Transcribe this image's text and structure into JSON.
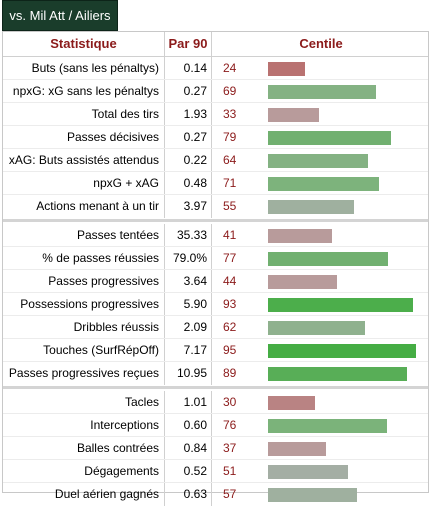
{
  "tab_label": "vs. Mil Att / Ailiers",
  "headers": {
    "stat": "Statistique",
    "per90": "Par 90",
    "percentile": "Centile"
  },
  "colors": {
    "header_text": "#8b1a1a",
    "tab_bg": "#1a3d2b",
    "bar_red": "#b97271",
    "bar_pink": "#b89b9b",
    "bar_grey": "#9fb09f",
    "bar_lightgreen": "#84b283",
    "bar_green": "#4cae4b"
  },
  "groups": [
    {
      "rows": [
        {
          "label": "Buts (sans les pénaltys)",
          "per90": "0.14",
          "percentile": "24",
          "color": "#b97271"
        },
        {
          "label": "npxG: xG sans les pénaltys",
          "per90": "0.27",
          "percentile": "69",
          "color": "#84b283"
        },
        {
          "label": "Total des tirs",
          "per90": "1.93",
          "percentile": "33",
          "color": "#b89b9b"
        },
        {
          "label": "Passes décisives",
          "per90": "0.27",
          "percentile": "79",
          "color": "#71b070"
        },
        {
          "label": "xAG: Buts assistés attendus",
          "per90": "0.22",
          "percentile": "64",
          "color": "#84b283"
        },
        {
          "label": "npxG + xAG",
          "per90": "0.48",
          "percentile": "71",
          "color": "#7db37c"
        },
        {
          "label": "Actions menant à un tir",
          "per90": "3.97",
          "percentile": "55",
          "color": "#9fb09f"
        }
      ]
    },
    {
      "rows": [
        {
          "label": "Passes tentées",
          "per90": "35.33",
          "percentile": "41",
          "color": "#b89b9b"
        },
        {
          "label": "% de passes réussies",
          "per90": "79.0%",
          "percentile": "77",
          "color": "#71b070"
        },
        {
          "label": "Passes progressives",
          "per90": "3.64",
          "percentile": "44",
          "color": "#b89b9b"
        },
        {
          "label": "Possessions progressives",
          "per90": "5.90",
          "percentile": "93",
          "color": "#4cae4b"
        },
        {
          "label": "Dribbles réussis",
          "per90": "2.09",
          "percentile": "62",
          "color": "#8fb18e"
        },
        {
          "label": "Touches (SurfRépOff)",
          "per90": "7.17",
          "percentile": "95",
          "color": "#45ad44"
        },
        {
          "label": "Passes progressives reçues",
          "per90": "10.95",
          "percentile": "89",
          "color": "#58ae57"
        }
      ]
    },
    {
      "rows": [
        {
          "label": "Tacles",
          "per90": "1.01",
          "percentile": "30",
          "color": "#b98383"
        },
        {
          "label": "Interceptions",
          "per90": "0.60",
          "percentile": "76",
          "color": "#7bb37a"
        },
        {
          "label": "Balles contrées",
          "per90": "0.84",
          "percentile": "37",
          "color": "#b89b9b"
        },
        {
          "label": "Dégagements",
          "per90": "0.52",
          "percentile": "51",
          "color": "#a4aea4"
        },
        {
          "label": "Duel aérien gagnés",
          "per90": "0.63",
          "percentile": "57",
          "color": "#9fb09f"
        }
      ]
    }
  ]
}
